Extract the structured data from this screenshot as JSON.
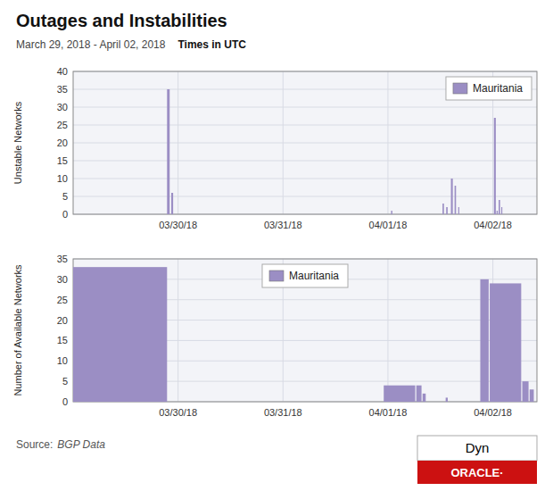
{
  "chart_data": [
    {
      "type": "bar",
      "title": "Outages and Instabilities",
      "subtitle": "March 29, 2018 - April 02, 2018",
      "annotations": [
        "Times in UTC"
      ],
      "ylabel": "Unstable Networks",
      "x": [
        0.895,
        0.935,
        3.03,
        3.52,
        3.555,
        3.6,
        3.635,
        3.67,
        4.01,
        4.035,
        4.055,
        4.08
      ],
      "widths": [
        0.025,
        0.018,
        0.012,
        0.014,
        0.014,
        0.018,
        0.014,
        0.01,
        0.018,
        0.012,
        0.014,
        0.01
      ],
      "series": [
        {
          "name": "Mauritania",
          "color": "#9b8ec4",
          "values": [
            35,
            6,
            1,
            3,
            2,
            10,
            8,
            2,
            27,
            1,
            4,
            2
          ]
        }
      ],
      "xlim": [
        0.0,
        4.42
      ],
      "xticks": [
        {
          "value": 1.0,
          "label": "03/30/18"
        },
        {
          "value": 2.0,
          "label": "03/31/18"
        },
        {
          "value": 3.0,
          "label": "04/01/18"
        },
        {
          "value": 4.0,
          "label": "04/02/18"
        }
      ],
      "ylim": [
        0,
        40
      ],
      "yticks": [
        0,
        5,
        10,
        15,
        20,
        25,
        30,
        35,
        40
      ],
      "grid": true,
      "legend": "top-right"
    },
    {
      "type": "bar",
      "annotations": [
        "Source:",
        "BGP Data",
        "Dyn",
        "ORACLE·"
      ],
      "ylabel": "Number of Available Networks",
      "x": [
        0.0,
        2.96,
        3.27,
        3.33,
        3.55,
        3.88,
        3.97,
        4.28,
        4.35
      ],
      "widths": [
        0.895,
        0.3,
        0.05,
        0.03,
        0.02,
        0.08,
        0.3,
        0.06,
        0.04
      ],
      "series": [
        {
          "name": "Mauritania",
          "color": "#9b8ec4",
          "values": [
            33,
            4,
            4,
            2,
            1,
            30,
            29,
            5,
            3
          ]
        }
      ],
      "xlim": [
        0.0,
        4.42
      ],
      "xticks": [
        {
          "value": 1.0,
          "label": "03/30/18"
        },
        {
          "value": 2.0,
          "label": "03/31/18"
        },
        {
          "value": 3.0,
          "label": "04/01/18"
        },
        {
          "value": 4.0,
          "label": "04/02/18"
        }
      ],
      "ylim": [
        0,
        35
      ],
      "yticks": [
        0,
        5,
        10,
        15,
        20,
        25,
        30,
        35
      ],
      "grid": true,
      "legend": "top-center"
    }
  ]
}
